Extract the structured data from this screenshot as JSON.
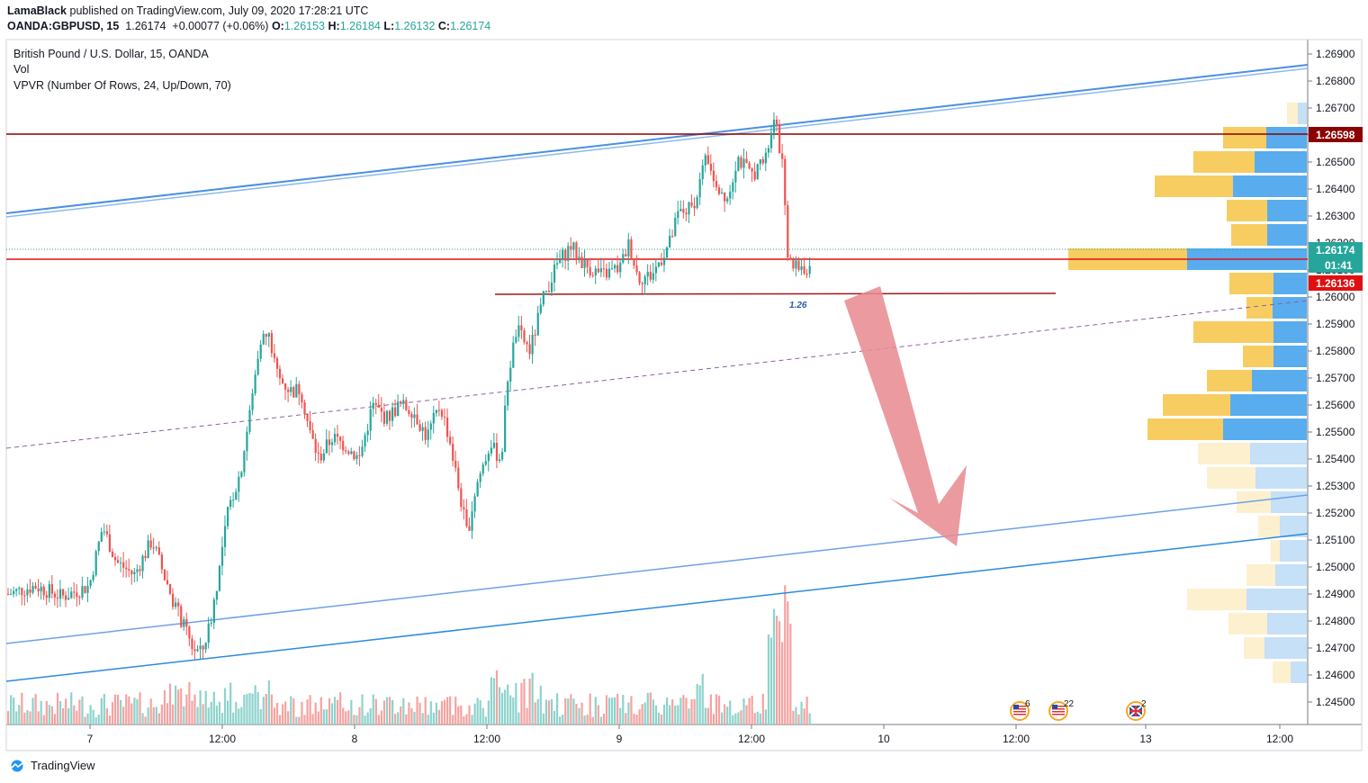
{
  "header": {
    "author": "LamaBlack",
    "published": "published on TradingView.com, July 09, 2020 17:28:21 UTC",
    "symbol": "OANDA:GBPUSD, 15",
    "last": "1.26174",
    "change": "+0.00077 (+0.06%)",
    "o_label": "O:",
    "o": "1.26153",
    "h_label": "H:",
    "h": "1.26184",
    "l_label": "L:",
    "l": "1.26132",
    "c_label": "C:",
    "c": "1.26174"
  },
  "legend": {
    "title": "British Pound / U.S. Dollar, 15, OANDA",
    "vol": "Vol",
    "vpvr": "VPVR (Number Of Rows, 24, Up/Down, 70)"
  },
  "branding": "TradingView",
  "colors": {
    "up": "#26a69a",
    "down": "#ef5350",
    "vol_up": "#8dd3cc",
    "vol_down": "#f5a3a1",
    "resistance": "#8b0000",
    "support": "#e01010",
    "channel": "#4a90e2",
    "arrow": "#e88a8f",
    "vp_up": "#59acee",
    "vp_down": "#f7cd61",
    "vp_up_light": "#c5e0f7",
    "vp_down_light": "#fdf0cf"
  },
  "chart_data": {
    "type": "candlestick",
    "y_ticks": [
      "1.26900",
      "1.26800",
      "1.26700",
      "1.26600",
      "1.26500",
      "1.26400",
      "1.26300",
      "1.26200",
      "1.26100",
      "1.26000",
      "1.25900",
      "1.25800",
      "1.25700",
      "1.25600",
      "1.25500",
      "1.25400",
      "1.25300",
      "1.25200",
      "1.25100",
      "1.25000",
      "1.24900",
      "1.24800",
      "1.24700",
      "1.24600",
      "1.24500"
    ],
    "y_range": [
      1.2443,
      1.2696
    ],
    "x_ticks": [
      "7",
      "12:00",
      "8",
      "12:00",
      "9",
      "12:00",
      "10",
      "12:00",
      "13",
      "12:00"
    ],
    "price_tags": {
      "resistance": "1.26598",
      "current": "1.26174",
      "countdown": "01:41",
      "support": "1.26136"
    },
    "annotation": "1.26",
    "candle_path": [
      [
        0,
        1.249
      ],
      [
        30,
        1.2493
      ],
      [
        60,
        1.2489
      ],
      [
        90,
        1.2493
      ],
      [
        105,
        1.2515
      ],
      [
        120,
        1.2502
      ],
      [
        140,
        1.2497
      ],
      [
        160,
        1.251
      ],
      [
        175,
        1.2495
      ],
      [
        190,
        1.2482
      ],
      [
        205,
        1.247
      ],
      [
        215,
        1.2468
      ],
      [
        225,
        1.248
      ],
      [
        235,
        1.25
      ],
      [
        245,
        1.2522
      ],
      [
        258,
        1.2535
      ],
      [
        270,
        1.256
      ],
      [
        280,
        1.2585
      ],
      [
        290,
        1.2585
      ],
      [
        300,
        1.257
      ],
      [
        315,
        1.2565
      ],
      [
        325,
        1.2566
      ],
      [
        335,
        1.255
      ],
      [
        345,
        1.254
      ],
      [
        360,
        1.2548
      ],
      [
        375,
        1.2545
      ],
      [
        390,
        1.254
      ],
      [
        405,
        1.256
      ],
      [
        420,
        1.2555
      ],
      [
        435,
        1.256
      ],
      [
        450,
        1.2558
      ],
      [
        465,
        1.2548
      ],
      [
        480,
        1.256
      ],
      [
        490,
        1.2548
      ],
      [
        500,
        1.253
      ],
      [
        510,
        1.2512
      ],
      [
        520,
        1.253
      ],
      [
        535,
        1.2545
      ],
      [
        548,
        1.254
      ],
      [
        555,
        1.257
      ],
      [
        565,
        1.2588
      ],
      [
        580,
        1.258
      ],
      [
        595,
        1.26
      ],
      [
        610,
        1.2612
      ],
      [
        625,
        1.2619
      ],
      [
        640,
        1.2612
      ],
      [
        660,
        1.2608
      ],
      [
        680,
        1.2611
      ],
      [
        690,
        1.262
      ],
      [
        700,
        1.2607
      ],
      [
        715,
        1.2608
      ],
      [
        735,
        1.262
      ],
      [
        745,
        1.2631
      ],
      [
        760,
        1.2633
      ],
      [
        775,
        1.265
      ],
      [
        790,
        1.264
      ],
      [
        800,
        1.2637
      ],
      [
        810,
        1.2652
      ],
      [
        825,
        1.2645
      ],
      [
        840,
        1.265
      ],
      [
        852,
        1.2665
      ],
      [
        860,
        1.265
      ],
      [
        865,
        1.262
      ],
      [
        870,
        1.261
      ],
      [
        880,
        1.2612
      ],
      [
        890,
        1.2608
      ],
      [
        900,
        1.2617
      ]
    ],
    "vp_rows": [
      {
        "price": 1.2668,
        "up": 10,
        "down": 12,
        "light": true
      },
      {
        "price": 1.2659,
        "up": 45,
        "down": 48,
        "light": false
      },
      {
        "price": 1.265,
        "up": 58,
        "down": 68,
        "light": false
      },
      {
        "price": 1.2641,
        "up": 82,
        "down": 87,
        "light": false
      },
      {
        "price": 1.2632,
        "up": 44,
        "down": 45,
        "light": false
      },
      {
        "price": 1.2623,
        "up": 44,
        "down": 40,
        "light": false
      },
      {
        "price": 1.2614,
        "up": 133,
        "down": 132,
        "light": false
      },
      {
        "price": 1.2605,
        "up": 37,
        "down": 49,
        "light": false
      },
      {
        "price": 1.2596,
        "up": 38,
        "down": 29,
        "light": false
      },
      {
        "price": 1.2587,
        "up": 37,
        "down": 89,
        "light": false
      },
      {
        "price": 1.2578,
        "up": 37,
        "down": 34,
        "light": false
      },
      {
        "price": 1.2569,
        "up": 61,
        "down": 50,
        "light": false
      },
      {
        "price": 1.256,
        "up": 85,
        "down": 75,
        "light": false
      },
      {
        "price": 1.2551,
        "up": 93,
        "down": 84,
        "light": false
      },
      {
        "price": 1.2542,
        "up": 63,
        "down": 58,
        "light": true
      },
      {
        "price": 1.2533,
        "up": 57,
        "down": 54,
        "light": true
      },
      {
        "price": 1.2524,
        "up": 40,
        "down": 38,
        "light": true
      },
      {
        "price": 1.2515,
        "up": 30,
        "down": 24,
        "light": true
      },
      {
        "price": 1.2506,
        "up": 30,
        "down": 10,
        "light": true
      },
      {
        "price": 1.2497,
        "up": 35,
        "down": 32,
        "light": true
      },
      {
        "price": 1.2488,
        "up": 67,
        "down": 66,
        "light": true
      },
      {
        "price": 1.2479,
        "up": 44,
        "down": 43,
        "light": true
      },
      {
        "price": 1.247,
        "up": 47,
        "down": 23,
        "light": true
      },
      {
        "price": 1.2461,
        "up": 18,
        "down": 20,
        "light": true
      }
    ],
    "events": [
      {
        "flag": "us",
        "count": "6"
      },
      {
        "flag": "us",
        "count": "22"
      },
      {
        "flag": "uk",
        "count": "2"
      }
    ]
  }
}
